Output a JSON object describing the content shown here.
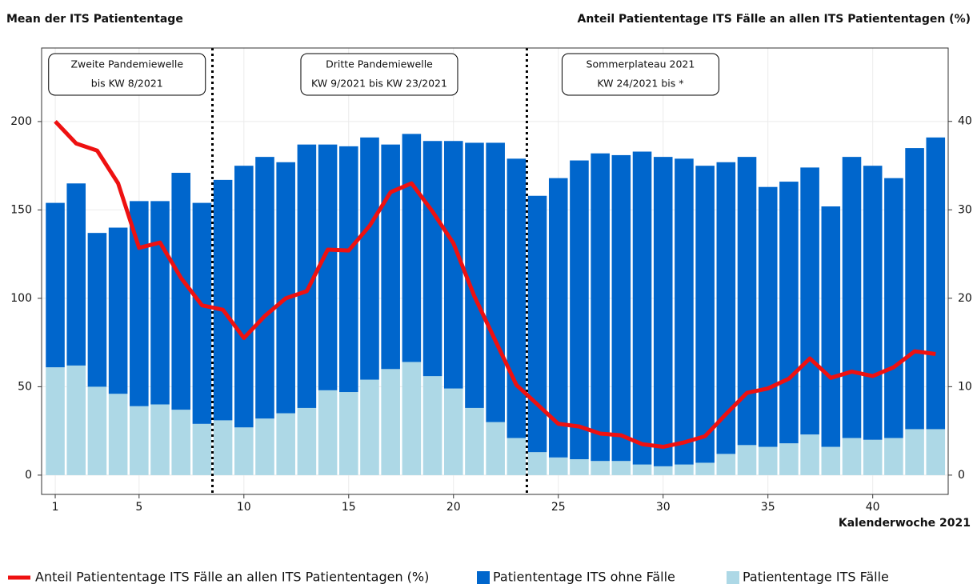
{
  "chart_data": {
    "type": "bar",
    "title": "Mean der ITS Patiententage",
    "y2_title": "Anteil Patiententage ITS Fälle an allen ITS Patiententagen (%)",
    "x_label": "Kalenderwoche 2021",
    "x": [
      1,
      2,
      3,
      4,
      5,
      6,
      7,
      8,
      9,
      10,
      11,
      12,
      13,
      14,
      15,
      16,
      17,
      18,
      19,
      20,
      21,
      22,
      23,
      24,
      25,
      26,
      27,
      28,
      29,
      30,
      31,
      32,
      33,
      34,
      35,
      36,
      37,
      38,
      39,
      40,
      41,
      42,
      43
    ],
    "series": [
      {
        "name": "Anteil Patiententage ITS Fälle an allen ITS Patiententagen (%)",
        "type": "line",
        "axis": "y2",
        "color": "#ee1111",
        "values": [
          40,
          37.5,
          36.7,
          33,
          25.7,
          26.3,
          22.3,
          19.2,
          18.7,
          15.5,
          18,
          20,
          20.8,
          25.5,
          25.4,
          28.2,
          32,
          33,
          29.8,
          26.2,
          20.2,
          15.2,
          10.2,
          8,
          5.8,
          5.5,
          4.7,
          4.5,
          3.5,
          3.2,
          3.7,
          4.4,
          6.9,
          9.3,
          9.8,
          10.9,
          13.2,
          11,
          11.7,
          11.2,
          12.2,
          14,
          13.7
        ]
      },
      {
        "name": "Patiententage ITS ohne Fälle",
        "type": "bar",
        "color": "#0066cc",
        "values": [
          93,
          103,
          87,
          94,
          116,
          115,
          134,
          125,
          136,
          148,
          148,
          142,
          149,
          139,
          139,
          137,
          127,
          129,
          133,
          140,
          150,
          158,
          158,
          145,
          158,
          169,
          174,
          173,
          177,
          175,
          173,
          168,
          165,
          163,
          147,
          148,
          151,
          136,
          159,
          155,
          147,
          159,
          165
        ]
      },
      {
        "name": "Patiententage ITS Fälle",
        "type": "bar",
        "color": "#add8e6",
        "values": [
          61,
          62,
          50,
          46,
          39,
          40,
          37,
          29,
          31,
          27,
          32,
          35,
          38,
          48,
          47,
          54,
          60,
          64,
          56,
          49,
          38,
          30,
          21,
          13,
          10,
          9,
          8,
          8,
          6,
          5,
          6,
          7,
          12,
          17,
          16,
          18,
          23,
          16,
          21,
          20,
          21,
          26,
          26
        ]
      }
    ],
    "stack_order": [
      "Patiententage ITS Fälle",
      "Patiententage ITS ohne Fälle"
    ],
    "xlim": [
      0.35,
      43.6
    ],
    "xticks": [
      1,
      5,
      10,
      15,
      20,
      25,
      30,
      35,
      40
    ],
    "ylim": [
      -10.9,
      241.6
    ],
    "yticks": [
      0,
      50,
      100,
      150,
      200
    ],
    "y2lim": [
      -2.18,
      48.3
    ],
    "y2ticks": [
      0,
      10,
      20,
      30,
      40
    ],
    "grid": true,
    "dividers": [
      8.5,
      23.5
    ],
    "annotations": [
      {
        "lines": [
          "Zweite Pandemiewelle",
          "bis KW 8/2021"
        ]
      },
      {
        "lines": [
          "Dritte Pandemiewelle",
          "KW 9/2021 bis KW 23/2021"
        ]
      },
      {
        "lines": [
          "Sommerplateau 2021",
          "KW 24/2021 bis *"
        ]
      }
    ],
    "legend": "bottom"
  }
}
